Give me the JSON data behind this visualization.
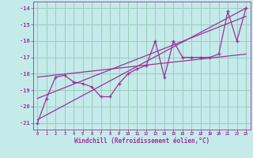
{
  "bg_color": "#c5eaea",
  "grid_color": "#99ccbb",
  "line_color": "#993399",
  "xlim": [
    -0.5,
    23.5
  ],
  "ylim": [
    -21.4,
    -13.6
  ],
  "xticks": [
    0,
    1,
    2,
    3,
    4,
    5,
    6,
    7,
    8,
    9,
    10,
    11,
    12,
    13,
    14,
    15,
    16,
    17,
    18,
    19,
    20,
    21,
    22,
    23
  ],
  "yticks": [
    -21,
    -20,
    -19,
    -18,
    -17,
    -16,
    -15,
    -14
  ],
  "xlabel": "Windchill (Refroidissement éolien,°C)",
  "data_x": [
    0,
    1,
    2,
    3,
    4,
    5,
    6,
    7,
    8,
    9,
    10,
    11,
    12,
    13,
    14,
    15,
    16,
    17,
    18,
    19,
    20,
    21,
    22,
    23
  ],
  "data_y": [
    -21.0,
    -19.5,
    -18.2,
    -18.1,
    -18.5,
    -18.6,
    -18.8,
    -19.4,
    -19.4,
    -18.6,
    -18.0,
    -17.7,
    -17.5,
    -16.0,
    -18.2,
    -16.0,
    -17.0,
    -17.0,
    -17.0,
    -17.0,
    -16.8,
    -14.2,
    -16.0,
    -14.0
  ],
  "trend1_x": [
    0,
    23
  ],
  "trend1_y": [
    -20.8,
    -14.0
  ],
  "trend2_x": [
    0,
    23
  ],
  "trend2_y": [
    -19.5,
    -14.5
  ],
  "trend3_x": [
    0,
    23
  ],
  "trend3_y": [
    -18.2,
    -16.8
  ]
}
